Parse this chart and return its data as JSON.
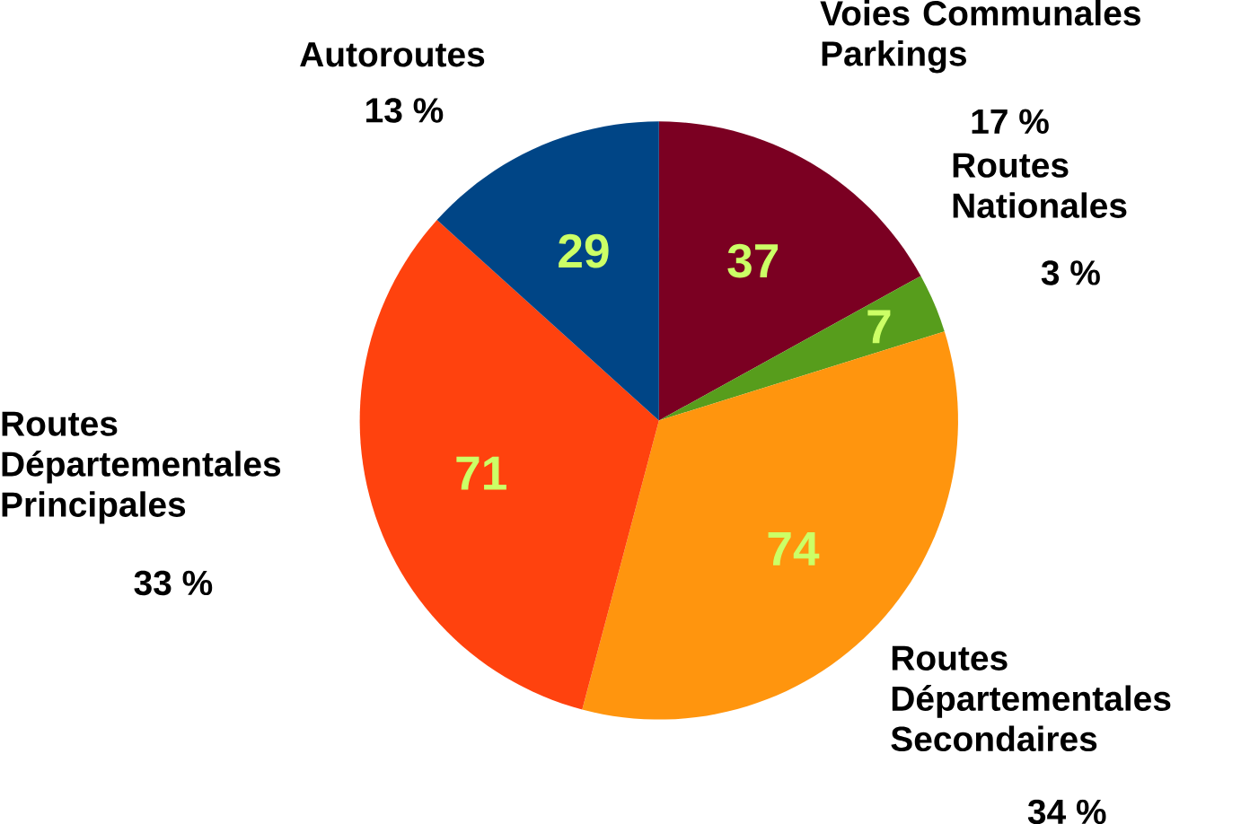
{
  "chart_data": {
    "type": "pie",
    "categories": [
      "Voies Communales Parkings",
      "Routes Nationales",
      "Routes Départementales Secondaires",
      "Routes Départementales Principales",
      "Autoroutes"
    ],
    "values": [
      37,
      7,
      74,
      71,
      29
    ],
    "colors": [
      "#7b0022",
      "#579d1c",
      "#ff950e",
      "#ff420e",
      "#004586"
    ],
    "data_labels": true,
    "annotations": [
      "17 %",
      "3 %",
      "34 %",
      "33 %",
      "13 %"
    ]
  }
}
